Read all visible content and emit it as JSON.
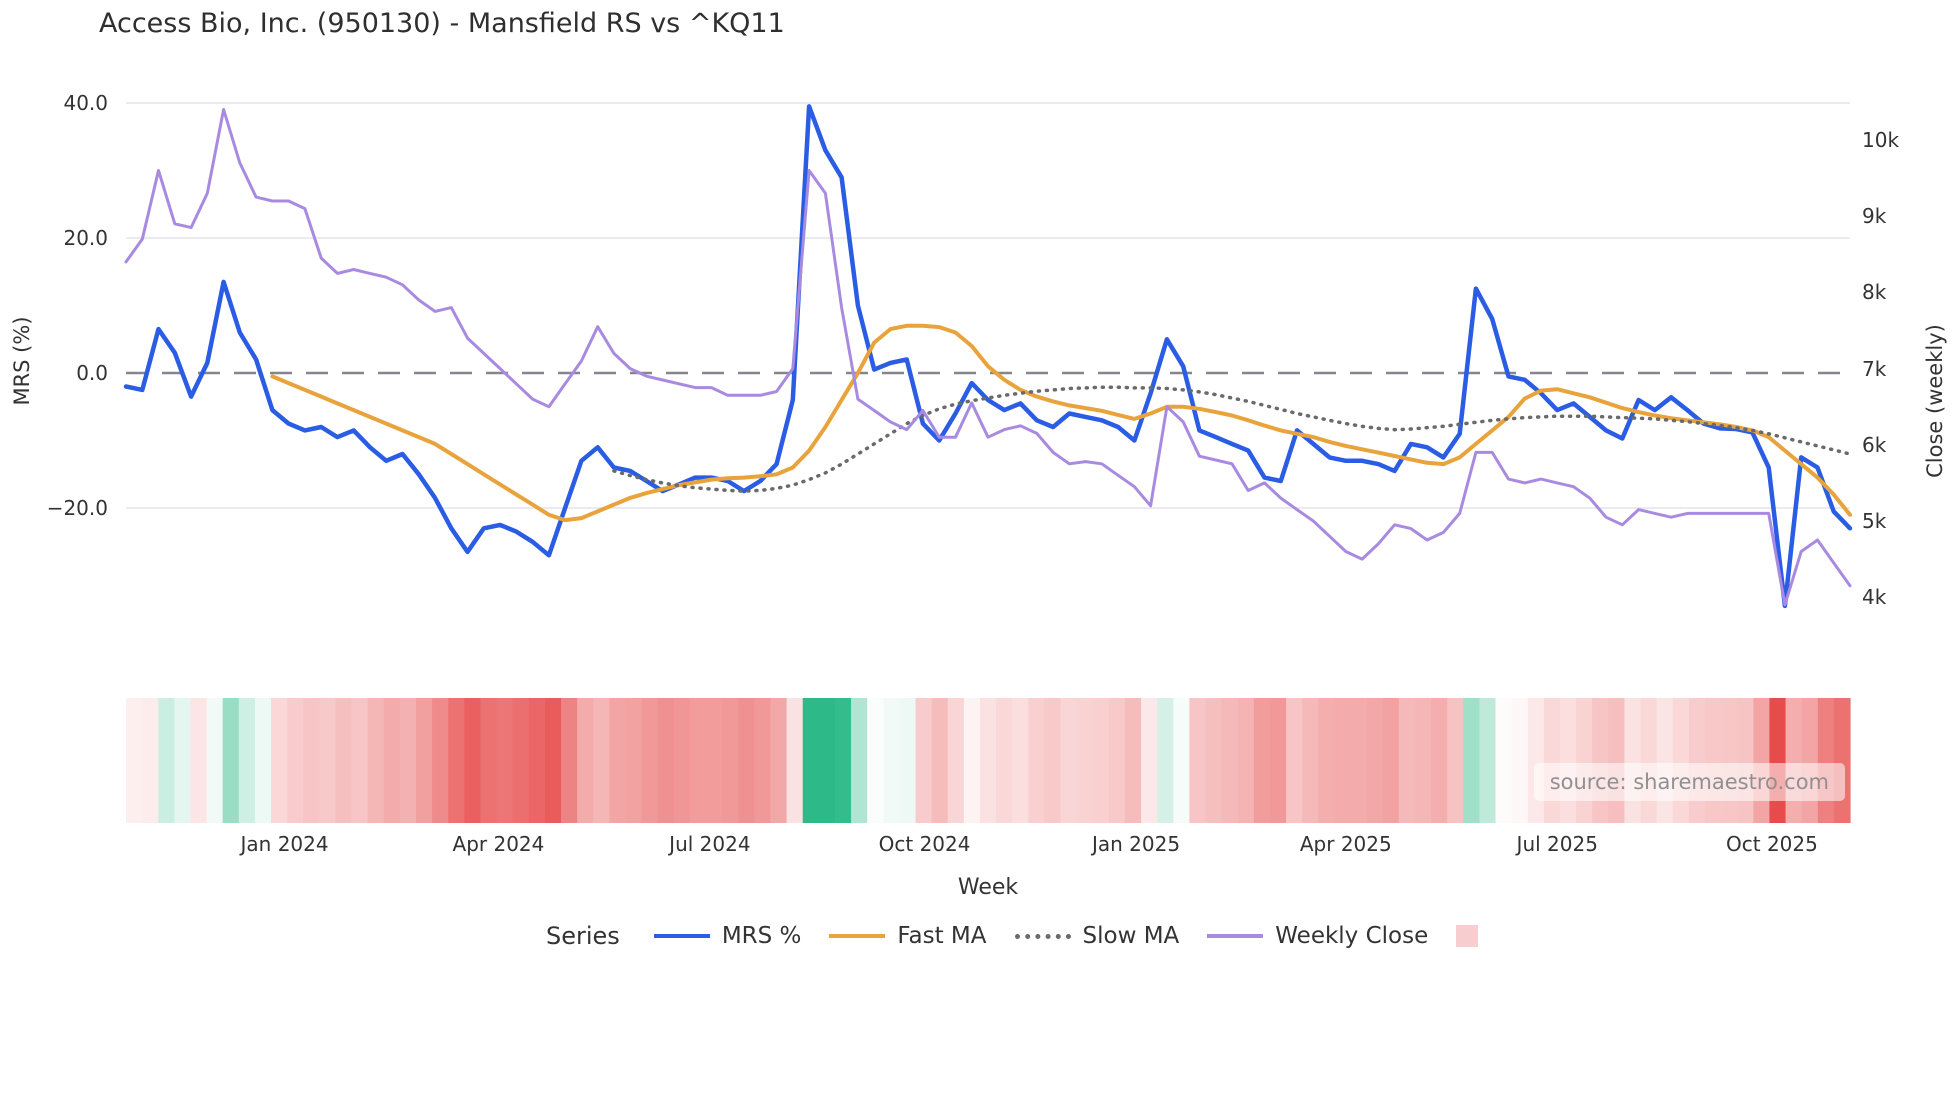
{
  "title": "Access Bio, Inc. (950130) - Mansfield RS vs ^KQ11",
  "watermark": "source: sharemaestro.com",
  "colors": {
    "mrs": "#2a5ce4",
    "fast_ma": "#e8a33c",
    "slow_ma": "#6a6a6a",
    "weekly_close": "#a88be0",
    "zero_line": "#85858f",
    "gridline": "#e9ebf0",
    "heat_red": "#e74c4c",
    "heat_green": "#2eba88",
    "heat_legend_swatch": "#f8cdd0",
    "text": "#333333"
  },
  "chart_data": {
    "type": "line",
    "title": "Access Bio, Inc. (950130) - Mansfield RS vs ^KQ11",
    "xlabel": "Week",
    "ylabel_left": "MRS (%)",
    "ylabel_right": "Close (weekly)",
    "legend_title": "Series",
    "x_start_week": "2023-10-27",
    "n_weeks": 107,
    "x_ticks": [
      {
        "label": "Jan 2024",
        "week": 9.75
      },
      {
        "label": "Apr 2024",
        "week": 22.9
      },
      {
        "label": "Jul 2024",
        "week": 35.9
      },
      {
        "label": "Oct 2024",
        "week": 49.1
      },
      {
        "label": "Jan 2025",
        "week": 62.1
      },
      {
        "label": "Apr 2025",
        "week": 75.0
      },
      {
        "label": "Jul 2025",
        "week": 88.0
      },
      {
        "label": "Oct 2025",
        "week": 101.2
      }
    ],
    "y_left": {
      "tick_values": [
        40,
        20,
        0,
        -20
      ],
      "tick_labels": [
        "40.0",
        "20.0",
        "0.0",
        "−20.0"
      ],
      "zero_dashed": true
    },
    "y_right": {
      "tick_values": [
        10,
        9,
        8,
        7,
        6,
        5,
        4
      ],
      "tick_labels": [
        "10k",
        "9k",
        "8k",
        "7k",
        "6k",
        "5k",
        "4k"
      ]
    },
    "grid": true,
    "legend_position": "bottom-center",
    "series": [
      {
        "name": "MRS %",
        "axis": "left",
        "style": "solid",
        "width": 4.5,
        "color": "#2a5ce4",
        "values": [
          -2,
          -2.5,
          6.5,
          3,
          -3.5,
          1.5,
          13.5,
          6,
          2,
          -5.5,
          -7.5,
          -8.5,
          -8,
          -9.5,
          -8.5,
          -11,
          -13,
          -12,
          -15,
          -18.5,
          -23,
          -26.5,
          -23,
          -22.5,
          -23.5,
          -25,
          -27,
          -20,
          -13,
          -11,
          -14,
          -14.5,
          -16,
          -17.5,
          -16.5,
          -15.5,
          -15.5,
          -16,
          -17.5,
          -16,
          -13.5,
          -4,
          39.5,
          33,
          29,
          10,
          0.5,
          1.5,
          2,
          -7.5,
          -10,
          -6,
          -1.5,
          -4,
          -5.5,
          -4.5,
          -7,
          -8,
          -6,
          -6.5,
          -7,
          -8,
          -10,
          -3,
          5,
          1,
          -8.5,
          -9.5,
          -10.5,
          -11.5,
          -15.5,
          -16,
          -8.5,
          -10.5,
          -12.5,
          -13,
          -13,
          -13.5,
          -14.5,
          -10.5,
          -11,
          -12.5,
          -9,
          12.5,
          8,
          -0.5,
          -1,
          -3,
          -5.5,
          -4.5,
          -6.5,
          -8.5,
          -9.7,
          -4,
          -5.5,
          -3.6,
          -5.5,
          -7.5,
          -8.2,
          -8.3,
          -8.8,
          -14,
          -34.5,
          -12.5,
          -14,
          -20.5,
          -23
        ]
      },
      {
        "name": "Fast MA",
        "axis": "left",
        "style": "solid",
        "width": 4,
        "color": "#e8a33c",
        "values": [
          null,
          null,
          null,
          null,
          null,
          null,
          null,
          null,
          null,
          -0.5,
          -1.5,
          -2.5,
          -3.5,
          -4.5,
          -5.5,
          -6.5,
          -7.5,
          -8.5,
          -9.5,
          -10.5,
          -12,
          -13.5,
          -15,
          -16.5,
          -18,
          -19.5,
          -21,
          -21.8,
          -21.5,
          -20.5,
          -19.5,
          -18.5,
          -17.8,
          -17.2,
          -16.6,
          -16.2,
          -15.8,
          -15.6,
          -15.5,
          -15.3,
          -15,
          -14,
          -11.5,
          -8,
          -4,
          0,
          4.5,
          6.5,
          7,
          7,
          6.8,
          6,
          4,
          1,
          -1,
          -2.5,
          -3.5,
          -4.2,
          -4.8,
          -5.2,
          -5.6,
          -6.2,
          -6.8,
          -6,
          -5,
          -5,
          -5.3,
          -5.8,
          -6.3,
          -7,
          -7.8,
          -8.5,
          -9,
          -9.5,
          -10.2,
          -10.8,
          -11.3,
          -11.8,
          -12.3,
          -12.8,
          -13.3,
          -13.5,
          -12.5,
          -10.5,
          -8.5,
          -6.5,
          -3.8,
          -2.6,
          -2.4,
          -3,
          -3.6,
          -4.4,
          -5.2,
          -5.8,
          -6.3,
          -6.7,
          -7,
          -7.3,
          -7.6,
          -8,
          -8.5,
          -9.5,
          -11.5,
          -13.5,
          -15.5,
          -18,
          -21
        ]
      },
      {
        "name": "Slow MA",
        "axis": "left",
        "style": "dotted",
        "width": 3.5,
        "color": "#6a6a6a",
        "values": [
          null,
          null,
          null,
          null,
          null,
          null,
          null,
          null,
          null,
          null,
          null,
          null,
          null,
          null,
          null,
          null,
          null,
          null,
          null,
          null,
          null,
          null,
          null,
          null,
          null,
          null,
          null,
          null,
          null,
          null,
          -14.5,
          -15.2,
          -15.8,
          -16.3,
          -16.7,
          -17,
          -17.2,
          -17.4,
          -17.5,
          -17.4,
          -17.1,
          -16.6,
          -15.8,
          -14.8,
          -13.5,
          -12,
          -10.5,
          -9,
          -7.5,
          -6.3,
          -5.3,
          -4.6,
          -4.1,
          -3.7,
          -3.3,
          -3,
          -2.7,
          -2.5,
          -2.3,
          -2.2,
          -2.1,
          -2.1,
          -2.2,
          -2.2,
          -2.3,
          -2.5,
          -2.8,
          -3.2,
          -3.7,
          -4.2,
          -4.8,
          -5.4,
          -6,
          -6.5,
          -7,
          -7.5,
          -7.9,
          -8.2,
          -8.4,
          -8.3,
          -8.1,
          -7.9,
          -7.6,
          -7.3,
          -7,
          -6.8,
          -6.6,
          -6.5,
          -6.4,
          -6.4,
          -6.4,
          -6.5,
          -6.6,
          -6.7,
          -6.8,
          -7,
          -7.2,
          -7.5,
          -7.8,
          -8.1,
          -8.5,
          -9,
          -9.6,
          -10.2,
          -10.8,
          -11.4,
          -12
        ]
      },
      {
        "name": "Weekly Close",
        "axis": "right",
        "style": "solid",
        "width": 3,
        "color": "#a88be0",
        "values": [
          8.4,
          8.7,
          9.6,
          8.9,
          8.85,
          9.3,
          10.4,
          9.7,
          9.25,
          9.2,
          9.2,
          9.1,
          8.45,
          8.25,
          8.3,
          8.25,
          8.2,
          8.1,
          7.9,
          7.75,
          7.8,
          7.4,
          7.2,
          7.0,
          6.8,
          6.6,
          6.5,
          6.8,
          7.1,
          7.55,
          7.2,
          7.0,
          6.9,
          6.85,
          6.8,
          6.75,
          6.75,
          6.65,
          6.65,
          6.65,
          6.7,
          7.0,
          9.6,
          9.3,
          7.8,
          6.6,
          6.45,
          6.3,
          6.2,
          6.45,
          6.1,
          6.1,
          6.55,
          6.1,
          6.2,
          6.25,
          6.15,
          5.9,
          5.75,
          5.78,
          5.75,
          5.6,
          5.45,
          5.2,
          6.5,
          6.3,
          5.85,
          5.8,
          5.75,
          5.4,
          5.5,
          5.3,
          5.15,
          5.0,
          4.8,
          4.6,
          4.5,
          4.7,
          4.95,
          4.9,
          4.75,
          4.85,
          5.1,
          5.9,
          5.9,
          5.55,
          5.5,
          5.55,
          5.5,
          5.45,
          5.3,
          5.05,
          4.95,
          5.15,
          5.1,
          5.05,
          5.1,
          5.1,
          5.1,
          5.1,
          5.1,
          5.1,
          3.9,
          4.6,
          4.75,
          4.45,
          4.15
        ]
      }
    ],
    "heatmap": {
      "derived_from": "MRS %",
      "description": "weekly strip below plot; green for positive MRS, red for negative, intensity scales with magnitude",
      "positive_color": "#2eba88",
      "negative_color": "#e74c4c"
    }
  }
}
